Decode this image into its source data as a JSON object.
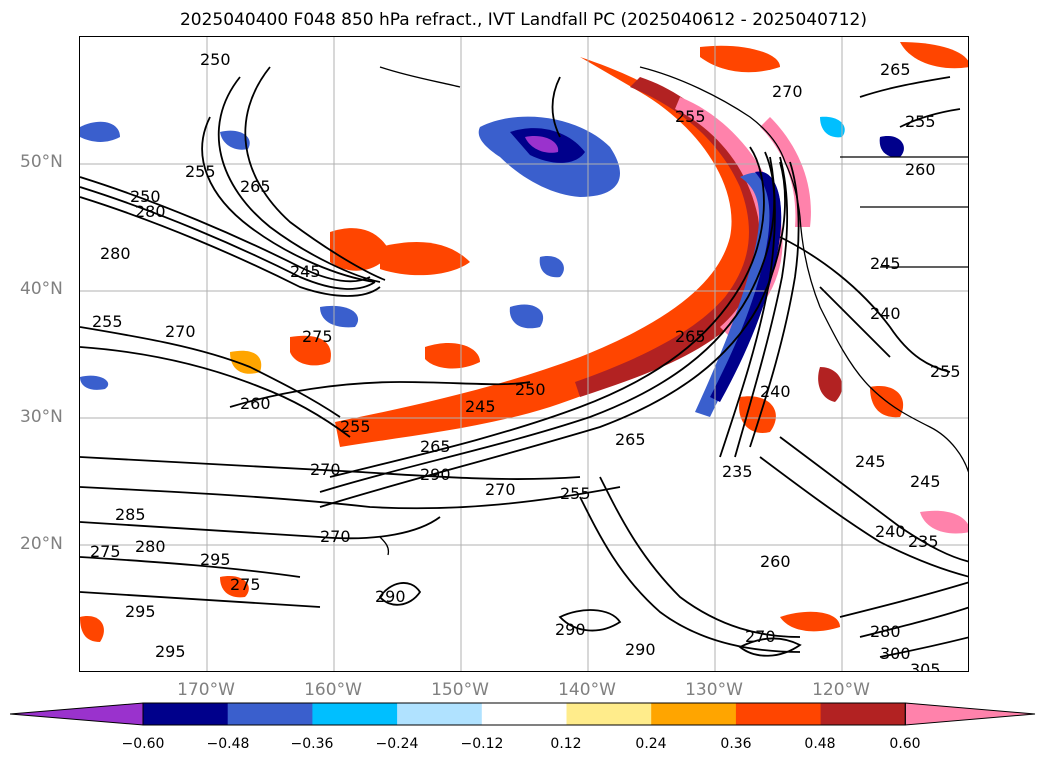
{
  "title": "2025040400 F048 850 hPa refract., IVT Landfall PC (2025040612 - 2025040712)",
  "lat_labels": [
    "50°N",
    "40°N",
    "30°N",
    "20°N"
  ],
  "lon_labels": [
    "170°W",
    "160°W",
    "150°W",
    "140°W",
    "130°W",
    "120°W"
  ],
  "colorbar": {
    "ticks": [
      "−0.60",
      "−0.48",
      "−0.36",
      "−0.24",
      "−0.12",
      "0.12",
      "0.24",
      "0.36",
      "0.48",
      "0.60"
    ],
    "colors": [
      "#9a32cd",
      "#00008b",
      "#3a5fcd",
      "#00bfff",
      "#b0e2ff",
      "#ffffff",
      "#ffec8b",
      "#ffa500",
      "#ff4500",
      "#b22222",
      "#ff82ab"
    ]
  },
  "contour_labels": [
    "250",
    "255",
    "265",
    "250",
    "280",
    "280",
    "245",
    "255",
    "270",
    "275",
    "260",
    "250",
    "245",
    "265",
    "255",
    "265",
    "270",
    "290",
    "270",
    "255",
    "285",
    "280",
    "275",
    "270",
    "295",
    "275",
    "290",
    "295",
    "295",
    "290",
    "290",
    "235",
    "265",
    "260",
    "270",
    "280",
    "300",
    "305",
    "240",
    "235",
    "245",
    "245",
    "240",
    "240",
    "245",
    "255",
    "265",
    "255",
    "260",
    "255",
    "270"
  ]
}
